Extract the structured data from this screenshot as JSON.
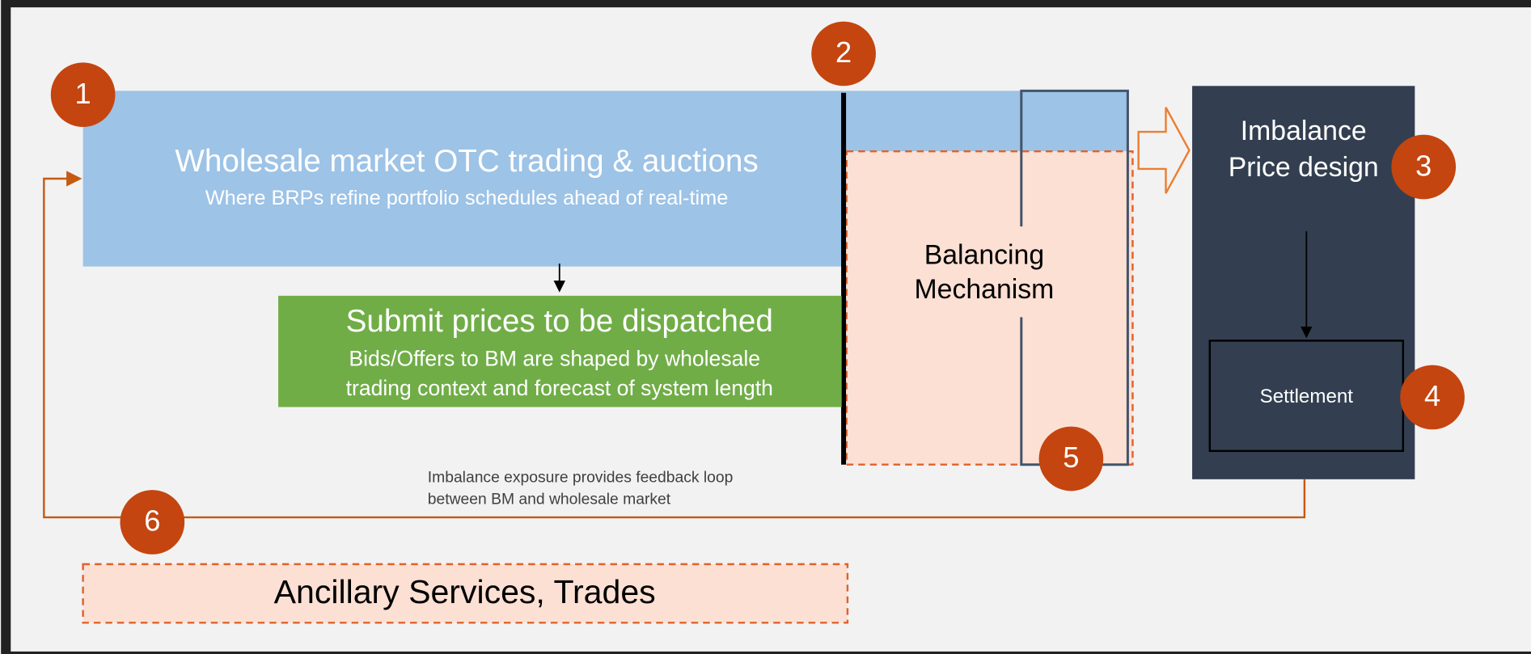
{
  "wholesale": {
    "title": "Wholesale market OTC trading & auctions",
    "subtitle": "Where BRPs refine portfolio schedules ahead of real-time"
  },
  "submit": {
    "title": "Submit prices to be dispatched",
    "lines": [
      "Bids/Offers to BM are shaped by wholesale",
      "trading context and forecast of system length"
    ]
  },
  "balancing": {
    "lines": [
      "Balancing",
      "Mechanism"
    ]
  },
  "imbalance": {
    "lines": [
      "Imbalance",
      "Price design"
    ]
  },
  "settlement": "Settlement",
  "feedback": {
    "lines": [
      "Imbalance exposure provides feedback loop",
      "between BM and wholesale market"
    ]
  },
  "ancillary": "Ancillary Services, Trades",
  "badges": [
    "1",
    "2",
    "3",
    "4",
    "5",
    "6"
  ]
}
